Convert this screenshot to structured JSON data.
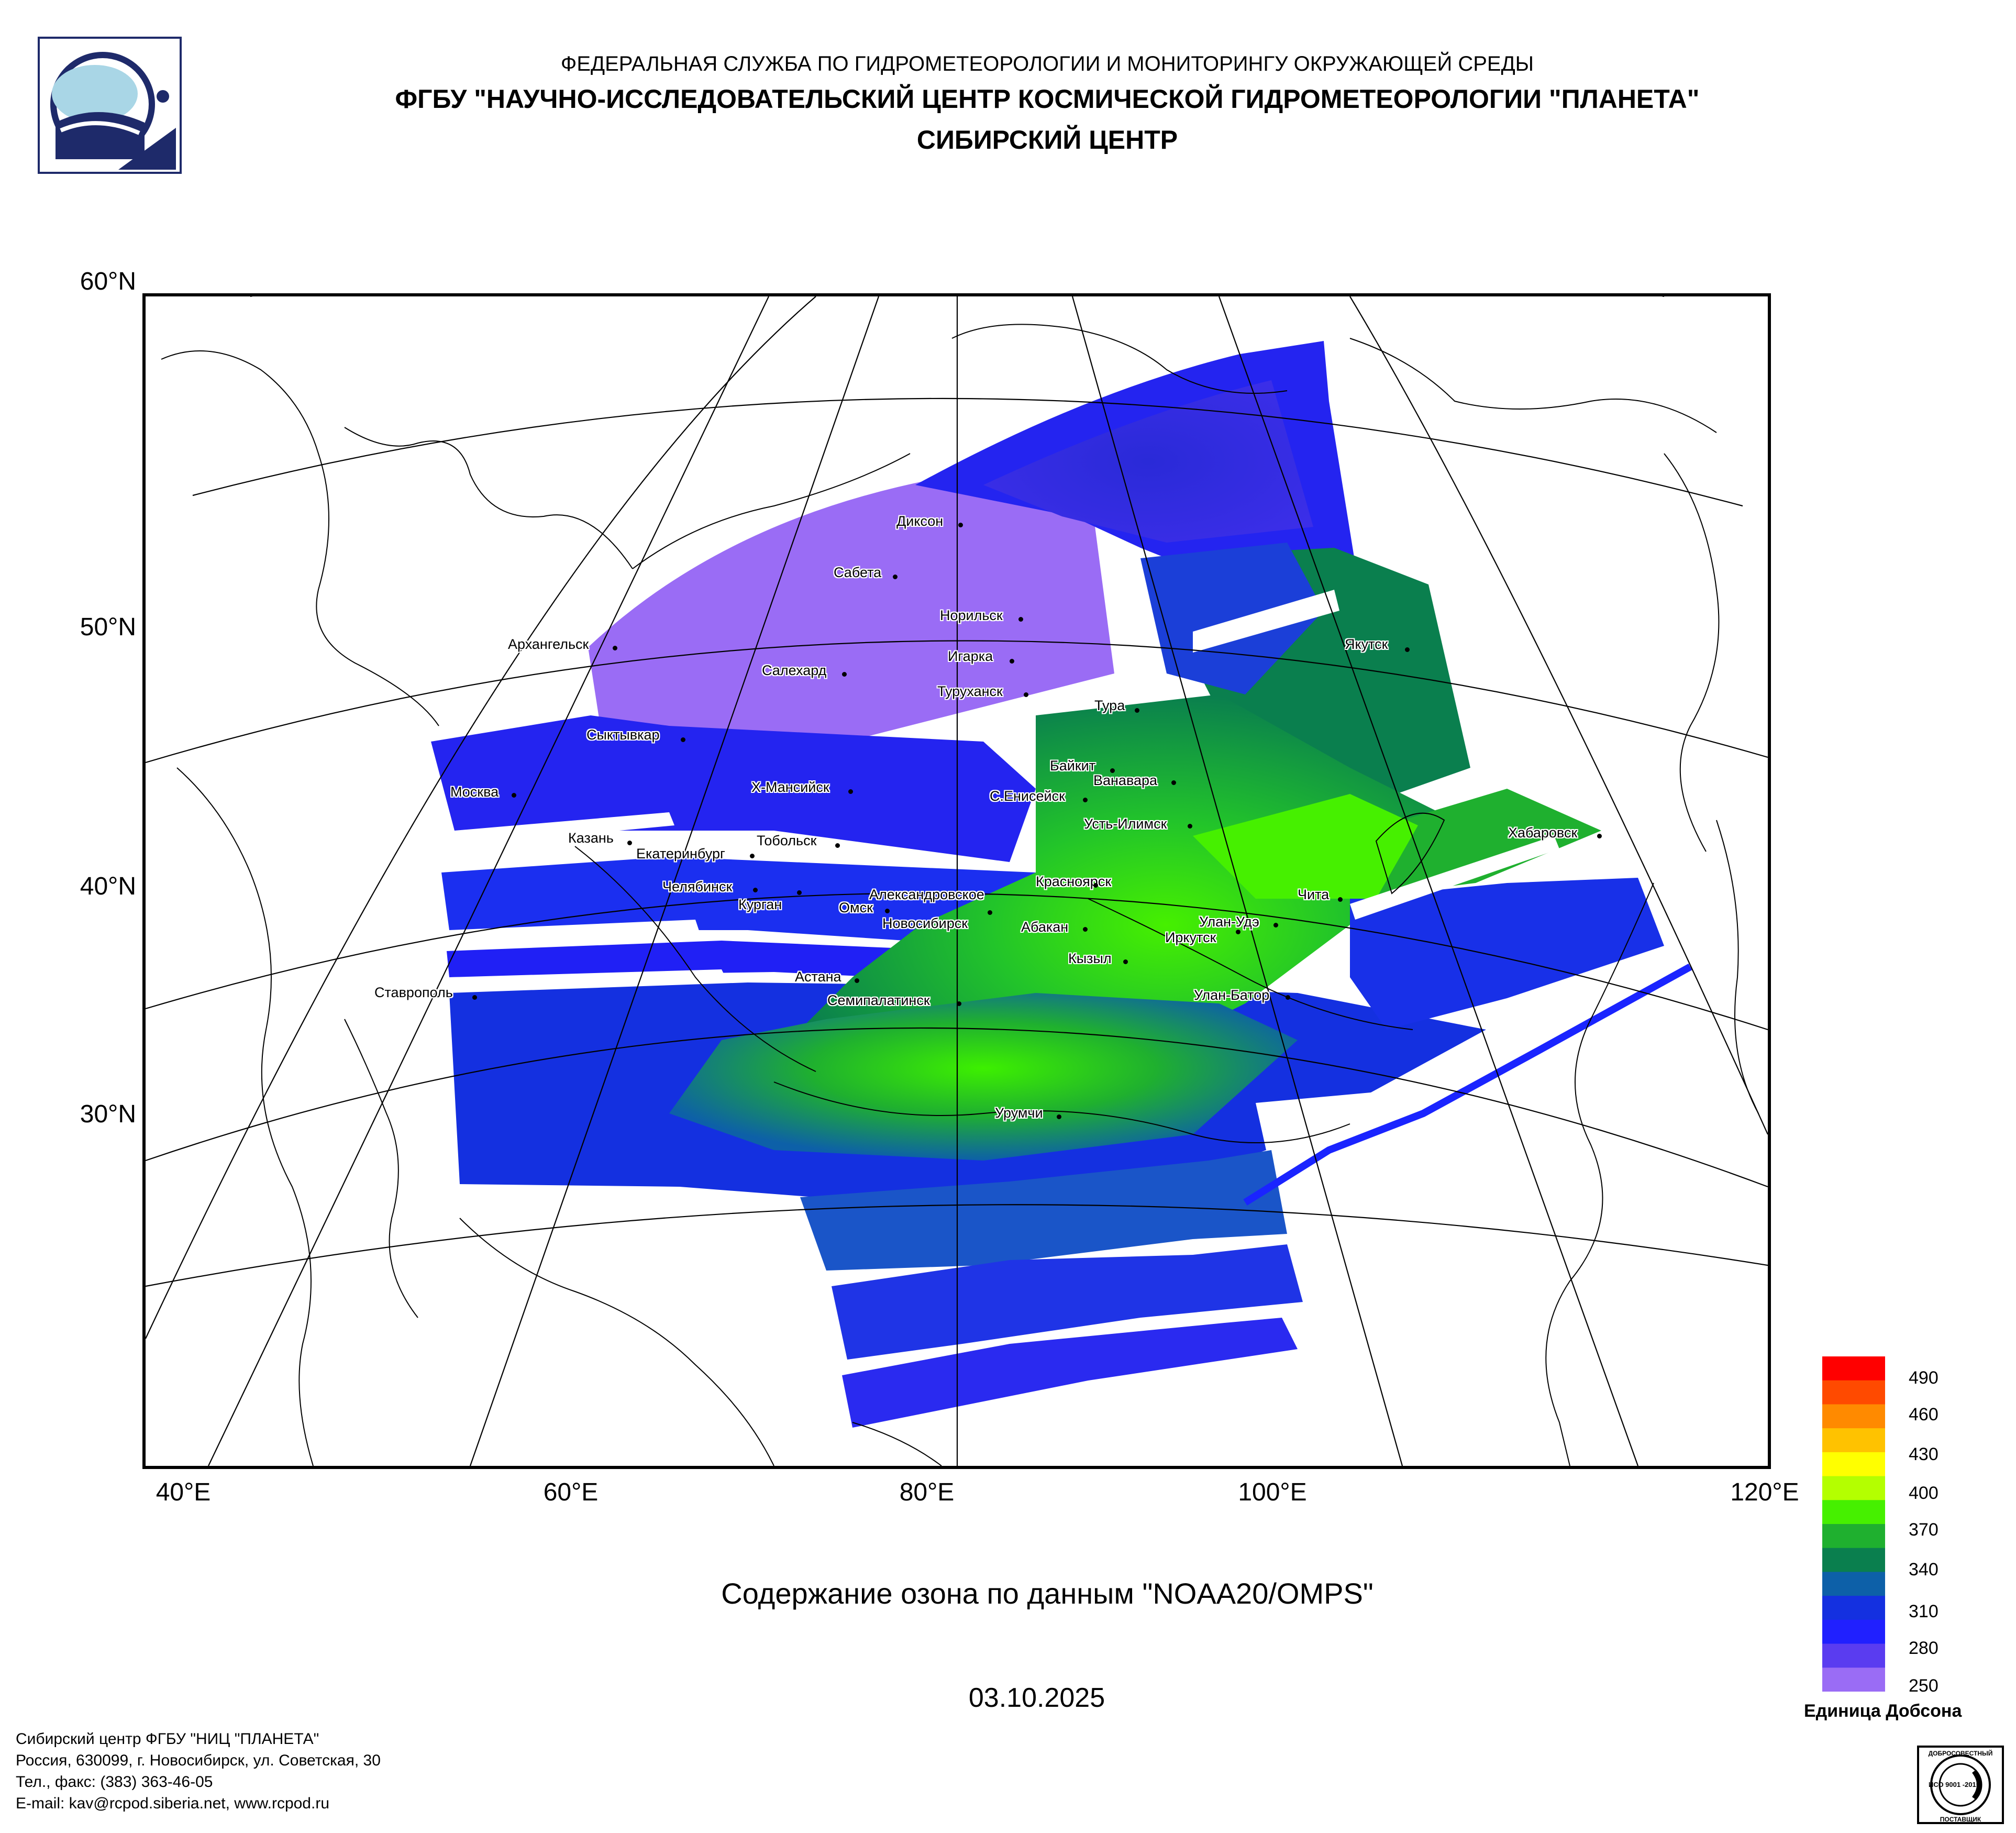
{
  "header": {
    "line1": "ФЕДЕРАЛЬНАЯ СЛУЖБА ПО ГИДРОМЕТЕОРОЛОГИИ И МОНИТОРИНГУ ОКРУЖАЮЩЕЙ СРЕДЫ",
    "line2": "ФГБУ \"НАУЧНО-ИССЛЕДОВАТЕЛЬСКИЙ ЦЕНТР КОСМИЧЕСКОЙ ГИДРОМЕТЕОРОЛОГИИ \"ПЛАНЕТА\"",
    "line3": "СИБИРСКИЙ ЦЕНТР"
  },
  "map": {
    "lat_labels": [
      "60°N",
      "50°N",
      "40°N",
      "30°N"
    ],
    "lon_labels": [
      "40°E",
      "60°E",
      "80°E",
      "100°E",
      "120°E"
    ],
    "cities": [
      "Диксон",
      "Сабета",
      "Норильск",
      "Игарка",
      "Салехард",
      "Туруханск",
      "Якутск",
      "Архангельск",
      "Тура",
      "Сыктывкар",
      "Байкит",
      "Ванавара",
      "Х-Мансийск",
      "С.Енисейск",
      "Москва",
      "Усть-Илимск",
      "Хабаровск",
      "Казань",
      "Тобольск",
      "Екатеринбург",
      "Челябинск",
      "Александровское",
      "Красноярск",
      "Чита",
      "Курган",
      "Омск",
      "Новосибирск",
      "Абакан",
      "Улан-Удэ",
      "Иркутск",
      "Кызыл",
      "Астана",
      "Ставрополь",
      "Семипалатинск",
      "Улан-Батор",
      "Урумчи"
    ]
  },
  "caption": "Содержание озона по данным \"NOAA20/OMPS\"",
  "date": "03.10.2025",
  "scale": {
    "ticks": [
      "490",
      "460",
      "430",
      "400",
      "370",
      "340",
      "310",
      "280",
      "250"
    ],
    "unit": "Единица Добсона",
    "colors": [
      "#ff0000",
      "#ff4a00",
      "#ff8a00",
      "#ffc200",
      "#ffff00",
      "#b4ff00",
      "#46f000",
      "#1fb02f",
      "#0a7f4e",
      "#0d60a8",
      "#1430e0",
      "#2020ff",
      "#5a3cf0",
      "#9a6cf5"
    ]
  },
  "footer": {
    "line1": "Сибирский центр ФГБУ \"НИЦ \"ПЛАНЕТА\"",
    "line2": "Россия, 630099, г. Новосибирск, ул. Советская, 30",
    "line3": "Тел., факс: (383) 363-46-05",
    "line4": "E-mail: kav@rcpod.siberia.net, www.rcpod.ru"
  },
  "certificate": {
    "top": "ДОБРОСОВЕСТНЫЙ",
    "mark": "ИСО 9001 -2015",
    "bottom": "ПОСТАВЩИК"
  },
  "colors": {
    "low_ozone": "#9a6cf5",
    "mid_ozone": "#1fb02f",
    "high_ozone": "#46f000",
    "frame": "#000000"
  }
}
